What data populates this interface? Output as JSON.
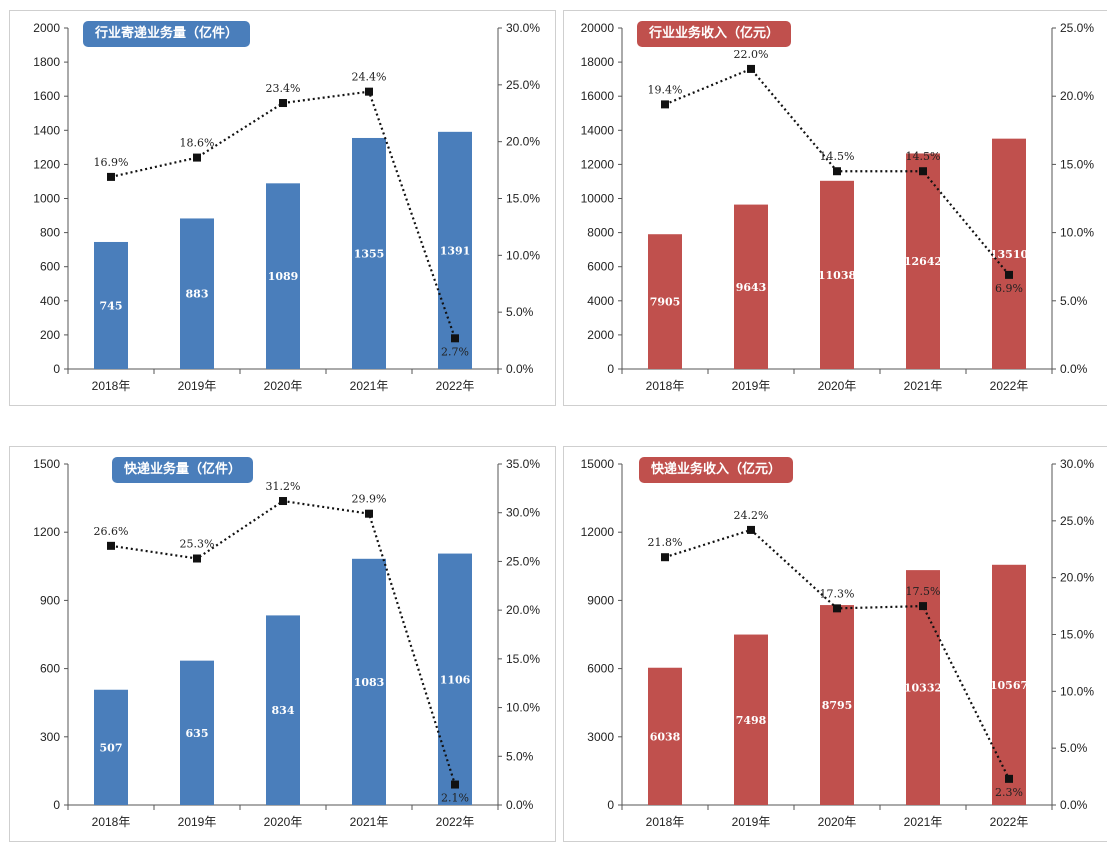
{
  "chart_data": [
    {
      "type": "bar",
      "title": "行业寄递业务量（亿件）",
      "categories": [
        "2018年",
        "2019年",
        "2020年",
        "2021年",
        "2022年"
      ],
      "bar_color": "#4a7ebb",
      "series": [
        {
          "values": [
            745,
            883,
            1089,
            1355,
            1391
          ]
        },
        {
          "type": "line",
          "values": [
            16.9,
            18.6,
            23.4,
            24.4,
            2.7
          ]
        }
      ],
      "point_labels": [
        "16.9%",
        "18.6%",
        "23.4%",
        "24.4%",
        "2.7%"
      ],
      "left_ticks": [
        "0",
        "200",
        "400",
        "600",
        "800",
        "1000",
        "1200",
        "1400",
        "1600",
        "1800",
        "2000"
      ],
      "right_ticks": [
        "0.0%",
        "5.0%",
        "10.0%",
        "15.0%",
        "20.0%",
        "25.0%",
        "30.0%"
      ],
      "ylim": [
        0,
        2000
      ],
      "y2lim": [
        0,
        30
      ]
    },
    {
      "type": "bar",
      "title": "行业业务收入（亿元）",
      "categories": [
        "2018年",
        "2019年",
        "2020年",
        "2021年",
        "2022年"
      ],
      "bar_color": "#c0504d",
      "series": [
        {
          "values": [
            7905,
            9643,
            11038,
            12642,
            13510
          ]
        },
        {
          "type": "line",
          "values": [
            19.4,
            22.0,
            14.5,
            14.5,
            6.9
          ]
        }
      ],
      "point_labels": [
        "19.4%",
        "22.0%",
        "14.5%",
        "14.5%",
        "6.9%"
      ],
      "left_ticks": [
        "0",
        "2000",
        "4000",
        "6000",
        "8000",
        "10000",
        "12000",
        "14000",
        "16000",
        "18000",
        "20000"
      ],
      "right_ticks": [
        "0.0%",
        "5.0%",
        "10.0%",
        "15.0%",
        "20.0%",
        "25.0%"
      ],
      "ylim": [
        0,
        20000
      ],
      "y2lim": [
        0,
        25
      ]
    },
    {
      "type": "bar",
      "title": "快递业务量（亿件）",
      "categories": [
        "2018年",
        "2019年",
        "2020年",
        "2021年",
        "2022年"
      ],
      "bar_color": "#4a7ebb",
      "series": [
        {
          "values": [
            507,
            635,
            834,
            1083,
            1106
          ]
        },
        {
          "type": "line",
          "values": [
            26.6,
            25.3,
            31.2,
            29.9,
            2.1
          ]
        }
      ],
      "point_labels": [
        "26.6%",
        "25.3%",
        "31.2%",
        "29.9%",
        "2.1%"
      ],
      "left_ticks": [
        "0",
        "300",
        "600",
        "900",
        "1200",
        "1500"
      ],
      "right_ticks": [
        "0.0%",
        "5.0%",
        "10.0%",
        "15.0%",
        "20.0%",
        "25.0%",
        "30.0%",
        "35.0%"
      ],
      "ylim": [
        0,
        1500
      ],
      "y2lim": [
        0,
        35
      ]
    },
    {
      "type": "bar",
      "title": "快递业务收入（亿元）",
      "categories": [
        "2018年",
        "2019年",
        "2020年",
        "2021年",
        "2022年"
      ],
      "bar_color": "#c0504d",
      "series": [
        {
          "values": [
            6038,
            7498,
            8795,
            10332,
            10567
          ]
        },
        {
          "type": "line",
          "values": [
            21.8,
            24.2,
            17.3,
            17.5,
            2.3
          ]
        }
      ],
      "point_labels": [
        "21.8%",
        "24.2%",
        "17.3%",
        "17.5%",
        "2.3%"
      ],
      "left_ticks": [
        "0",
        "3000",
        "6000",
        "9000",
        "12000",
        "15000"
      ],
      "right_ticks": [
        "0.0%",
        "5.0%",
        "10.0%",
        "15.0%",
        "20.0%",
        "25.0%",
        "30.0%"
      ],
      "ylim": [
        0,
        15000
      ],
      "y2lim": [
        0,
        30
      ]
    }
  ]
}
